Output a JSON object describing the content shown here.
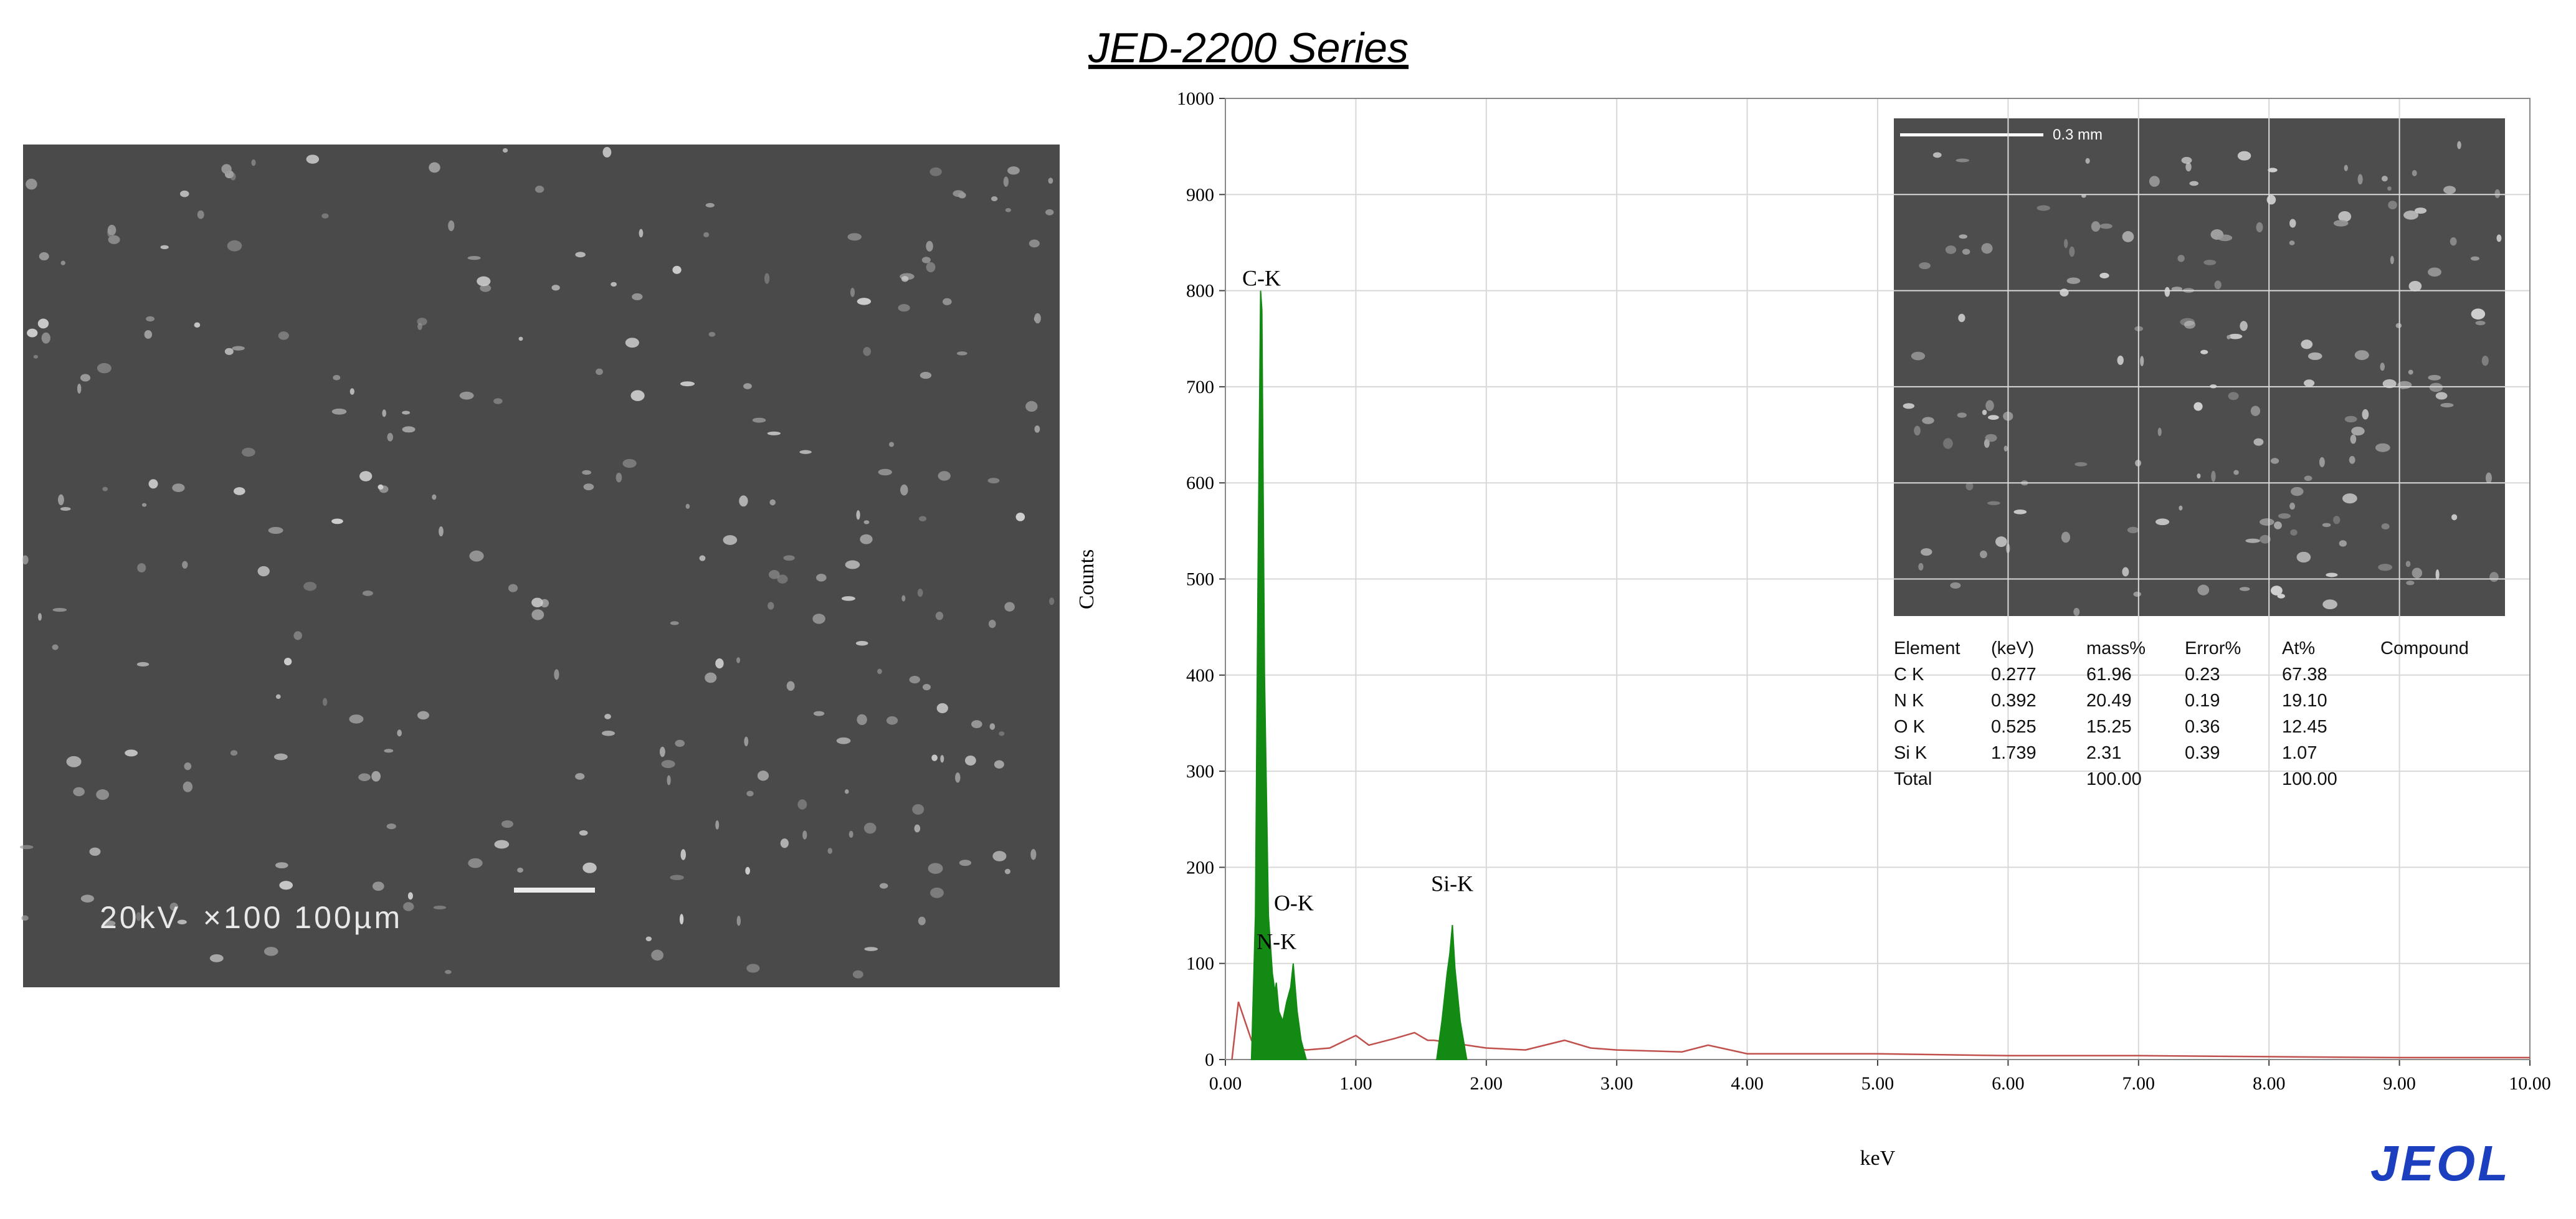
{
  "title": "JED-2200 Series",
  "sem_image": {
    "label": "20kV  ×100 100µm"
  },
  "inset_image": {
    "scale_label": "0.3 mm"
  },
  "table": {
    "columns": [
      "Element",
      "(keV)",
      "mass%",
      "Error%",
      "At%",
      "Compound"
    ],
    "rows": [
      [
        "C  K",
        "0.277",
        "61.96",
        "0.23",
        "67.38"
      ],
      [
        "N  K",
        "0.392",
        "20.49",
        "0.19",
        "19.10"
      ],
      [
        "O  K",
        "0.525",
        "15.25",
        "0.36",
        "12.45"
      ],
      [
        "Si K",
        "1.739",
        "2.31",
        "0.39",
        "1.07"
      ]
    ],
    "total": {
      "label": "Total",
      "mass": "100.00",
      "at": "100.00"
    }
  },
  "logo": "JEOL",
  "chart_data": {
    "type": "spectrum",
    "xlabel": "keV",
    "ylabel": "Counts",
    "xlim": [
      0,
      10
    ],
    "ylim": [
      0,
      1000
    ],
    "xticks": [
      {
        "value": 0,
        "label": "0.00"
      },
      {
        "value": 1,
        "label": "1.00"
      },
      {
        "value": 2,
        "label": "2.00"
      },
      {
        "value": 3,
        "label": "3.00"
      },
      {
        "value": 4,
        "label": "4.00"
      },
      {
        "value": 5,
        "label": "5.00"
      },
      {
        "value": 6,
        "label": "6.00"
      },
      {
        "value": 7,
        "label": "7.00"
      },
      {
        "value": 8,
        "label": "8.00"
      },
      {
        "value": 9,
        "label": "9.00"
      },
      {
        "value": 10,
        "label": "10.00"
      }
    ],
    "yticks": [
      0,
      100,
      200,
      300,
      400,
      500,
      600,
      700,
      800,
      900,
      1000
    ],
    "grid": true,
    "series": [
      {
        "color": "#c0504d",
        "fill": false,
        "x": [
          0.05,
          0.1,
          0.15,
          0.2,
          0.62,
          0.8,
          1.0,
          1.1,
          1.3,
          1.45,
          1.55,
          1.6,
          1.85,
          2.0,
          2.3,
          2.6,
          2.8,
          3.0,
          3.5,
          3.7,
          4.0,
          4.5,
          5.0,
          6.0,
          7.0,
          8.0,
          9.0,
          10.0
        ],
        "values": [
          0,
          60,
          40,
          20,
          10,
          12,
          25,
          15,
          22,
          28,
          20,
          20,
          15,
          12,
          10,
          20,
          12,
          10,
          8,
          15,
          6,
          6,
          6,
          4,
          4,
          3,
          2,
          2
        ]
      },
      {
        "color": "#138a13",
        "fill": true,
        "x": [
          0.2,
          0.23,
          0.25,
          0.27,
          0.28,
          0.3,
          0.33,
          0.36,
          0.38,
          0.39,
          0.41,
          0.44,
          0.47,
          0.5,
          0.52,
          0.55,
          0.58,
          0.62
        ],
        "values": [
          0,
          150,
          500,
          800,
          780,
          400,
          150,
          90,
          70,
          80,
          50,
          40,
          60,
          75,
          100,
          50,
          20,
          0
        ]
      },
      {
        "color": "#138a13",
        "fill": true,
        "x": [
          1.62,
          1.66,
          1.7,
          1.72,
          1.74,
          1.76,
          1.8,
          1.85
        ],
        "values": [
          0,
          40,
          90,
          110,
          140,
          95,
          40,
          0
        ]
      }
    ],
    "annotations": [
      {
        "text": "C-K",
        "x": 0.277,
        "y": 800
      },
      {
        "text": "O-K",
        "x": 0.525,
        "y": 150
      },
      {
        "text": "N-K",
        "x": 0.392,
        "y": 110
      },
      {
        "text": "Si-K",
        "x": 1.739,
        "y": 170
      }
    ]
  }
}
